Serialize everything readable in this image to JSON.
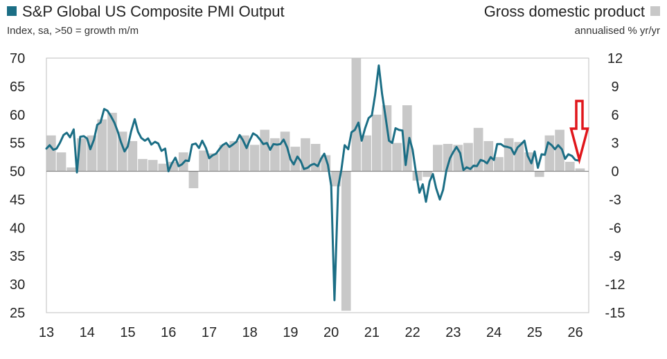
{
  "colors": {
    "pmi_line": "#1b6e85",
    "gdp_bar": "#c8c8c8",
    "arrow": "#e0161b",
    "frame": "#bfbfbf",
    "zero_line": "#7f7f7f"
  },
  "chart_data": {
    "type": "bar+line",
    "title_left": "S&P Global US Composite PMI Output",
    "subtitle_left": "Index, sa, >50 = growth m/m",
    "title_right": "Gross domestic product",
    "subtitle_right": "annualised % yr/yr",
    "legend": [
      {
        "name": "S&P Global US Composite PMI Output",
        "marker": "square",
        "color": "#1b6e85"
      },
      {
        "name": "Gross domestic product",
        "marker": "square",
        "color": "#c8c8c8"
      }
    ],
    "y_left": {
      "min": 25,
      "max": 70,
      "ticks": [
        70,
        65,
        60,
        55,
        50,
        45,
        40,
        35,
        30,
        25
      ]
    },
    "y_right": {
      "min": -15,
      "max": 12,
      "ticks": [
        12,
        9,
        6,
        3,
        0,
        -3,
        -6,
        -9,
        -12,
        -15
      ]
    },
    "x": {
      "min": 13,
      "max": 26.33,
      "tick_labels": [
        "13",
        "14",
        "15",
        "16",
        "17",
        "18",
        "19",
        "20",
        "21",
        "22",
        "23",
        "24",
        "25",
        "26"
      ]
    },
    "gdp_series": {
      "name": "Gross domestic product",
      "axis": "right",
      "x": [
        13.0,
        13.25,
        13.5,
        13.75,
        14.0,
        14.25,
        14.5,
        14.75,
        15.0,
        15.25,
        15.5,
        15.75,
        16.0,
        16.25,
        16.5,
        16.75,
        17.0,
        17.25,
        17.5,
        17.75,
        18.0,
        18.25,
        18.5,
        18.75,
        19.0,
        19.25,
        19.5,
        19.75,
        20.0,
        20.25,
        20.5,
        20.75,
        21.0,
        21.25,
        21.5,
        21.75,
        22.0,
        22.25,
        22.5,
        22.75,
        23.0,
        23.25,
        23.5,
        23.75,
        24.0,
        24.25,
        24.5,
        24.75,
        25.0,
        25.25,
        25.5,
        25.75,
        26.0
      ],
      "values": [
        3.8,
        2.0,
        0.4,
        3.5,
        3.8,
        5.5,
        6.2,
        4.2,
        3.2,
        1.3,
        1.2,
        0.8,
        1.0,
        2.0,
        -1.8,
        2.2,
        1.9,
        2.8,
        3.2,
        3.8,
        2.8,
        4.4,
        3.5,
        4.2,
        2.6,
        3.5,
        2.9,
        1.7,
        -1.6,
        -14.8,
        12.0,
        3.8,
        6.0,
        7.0,
        3.0,
        7.0,
        -1.0,
        -0.6,
        2.8,
        2.9,
        2.8,
        3.0,
        4.6,
        3.2,
        1.5,
        3.5,
        3.1,
        2.0,
        -0.6,
        3.8,
        4.4,
        1.0,
        0.3
      ]
    },
    "pmi_series": {
      "name": "S&P Global US Composite PMI Output",
      "axis": "left",
      "x": [
        13.0,
        13.08,
        13.17,
        13.25,
        13.33,
        13.42,
        13.5,
        13.58,
        13.67,
        13.75,
        13.83,
        13.92,
        14.0,
        14.08,
        14.17,
        14.25,
        14.33,
        14.42,
        14.5,
        14.58,
        14.67,
        14.75,
        14.83,
        14.92,
        15.0,
        15.08,
        15.17,
        15.25,
        15.33,
        15.42,
        15.5,
        15.58,
        15.67,
        15.75,
        15.83,
        15.92,
        16.0,
        16.08,
        16.17,
        16.25,
        16.33,
        16.42,
        16.5,
        16.58,
        16.67,
        16.75,
        16.83,
        16.92,
        17.0,
        17.08,
        17.17,
        17.25,
        17.33,
        17.42,
        17.5,
        17.58,
        17.67,
        17.75,
        17.83,
        17.92,
        18.0,
        18.08,
        18.17,
        18.25,
        18.33,
        18.42,
        18.5,
        18.58,
        18.67,
        18.75,
        18.83,
        18.92,
        19.0,
        19.08,
        19.17,
        19.25,
        19.33,
        19.42,
        19.5,
        19.58,
        19.67,
        19.75,
        19.83,
        19.92,
        20.0,
        20.08,
        20.17,
        20.25,
        20.33,
        20.42,
        20.5,
        20.58,
        20.67,
        20.75,
        20.83,
        20.92,
        21.0,
        21.08,
        21.17,
        21.25,
        21.33,
        21.42,
        21.5,
        21.58,
        21.67,
        21.75,
        21.83,
        21.92,
        22.0,
        22.08,
        22.17,
        22.25,
        22.33,
        22.42,
        22.5,
        22.58,
        22.67,
        22.75,
        22.83,
        22.92,
        23.0,
        23.08,
        23.17,
        23.25,
        23.33,
        23.42,
        23.5,
        23.58,
        23.67,
        23.75,
        23.83,
        23.92,
        24.0,
        24.08,
        24.17,
        24.25,
        24.33,
        24.42,
        24.5,
        24.58,
        24.67,
        24.75,
        24.83,
        24.92,
        25.0,
        25.08,
        25.17,
        25.25,
        25.33,
        25.42,
        25.5,
        25.58,
        25.67,
        25.75,
        25.83,
        25.92,
        26.0,
        26.08
      ],
      "values": [
        54.0,
        54.6,
        53.8,
        54.0,
        55.0,
        56.4,
        56.8,
        56.0,
        57.4,
        49.8,
        56.1,
        56.2,
        55.8,
        53.9,
        55.6,
        58.2,
        58.6,
        61.0,
        60.7,
        59.8,
        58.6,
        57.1,
        55.2,
        53.5,
        54.4,
        57.0,
        59.2,
        57.0,
        55.9,
        55.4,
        55.8,
        54.7,
        55.2,
        54.9,
        53.6,
        54.0,
        50.0,
        51.3,
        52.4,
        50.9,
        51.2,
        51.9,
        51.8,
        54.7,
        54.9,
        54.1,
        55.4,
        54.1,
        52.3,
        52.8,
        53.1,
        53.9,
        54.6,
        55.0,
        54.3,
        54.7,
        55.2,
        56.4,
        55.5,
        54.1,
        55.5,
        56.7,
        56.3,
        55.6,
        54.8,
        55.0,
        53.8,
        54.8,
        54.7,
        54.8,
        55.6,
        54.2,
        52.1,
        51.2,
        52.6,
        51.8,
        50.4,
        50.6,
        51.1,
        51.3,
        50.9,
        52.2,
        53.1,
        51.1,
        47.4,
        27.2,
        47.2,
        50.3,
        54.6,
        53.9,
        56.9,
        57.3,
        58.6,
        55.4,
        57.5,
        59.4,
        59.9,
        63.5,
        68.7,
        63.7,
        59.9,
        55.4,
        55.0,
        57.6,
        57.3,
        57.2,
        51.1,
        55.9,
        53.8,
        49.9,
        46.2,
        47.7,
        44.6,
        48.2,
        49.5,
        47.0,
        45.0,
        46.7,
        50.1,
        52.3,
        53.4,
        54.3,
        53.2,
        50.2,
        50.7,
        50.4,
        51.0,
        50.9,
        52.0,
        51.8,
        51.4,
        52.5,
        52.0,
        54.8,
        54.8,
        54.4,
        54.3,
        54.1,
        53.0,
        54.2,
        54.8,
        55.4,
        52.7,
        51.4,
        53.5,
        50.6,
        53.0,
        52.9,
        55.1,
        54.6,
        53.9,
        54.6,
        53.9,
        52.2,
        53.0,
        52.7,
        52.0,
        51.9
      ]
    },
    "annotation": {
      "type": "arrow",
      "direction": "down",
      "at_x": 26.1,
      "color": "red"
    }
  }
}
